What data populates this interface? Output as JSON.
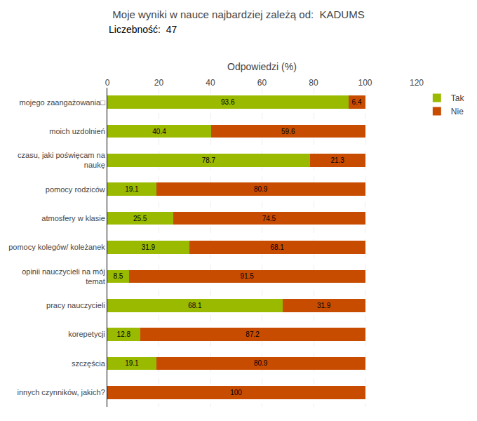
{
  "chart_data": {
    "type": "bar",
    "orientation": "horizontal",
    "stacked": true,
    "title": "Moje wyniki w nauce najbardziej zależą od:  KADUMS",
    "subtitle": "Liczebność:  47",
    "xlabel": "Odpowiedzi (%)",
    "categories": [
      "mojego zaangażowania□",
      "moich uzdolnień",
      "czasu, jaki poświęcam na\nnaukę",
      "pomocy rodziców",
      "atmosfery w klasie",
      "pomocy kolegów/ koleżanek",
      "opinii nauczycieli na mój\ntemat",
      "pracy nauczycieli",
      "korepetycji",
      "szczęścia",
      "innych czynników, jakich?"
    ],
    "series": [
      {
        "name": "Tak",
        "color": "#9aba00",
        "values": [
          93.6,
          40.4,
          78.7,
          19.1,
          25.5,
          31.9,
          8.5,
          68.1,
          12.8,
          19.1,
          0.0
        ]
      },
      {
        "name": "Nie",
        "color": "#c84c00",
        "values": [
          6.4,
          59.6,
          21.3,
          80.9,
          74.5,
          68.1,
          91.5,
          31.9,
          87.2,
          80.9,
          100.0
        ]
      }
    ],
    "xlim": [
      0,
      120
    ],
    "xticks": [
      0,
      20,
      40,
      60,
      80,
      100,
      120
    ],
    "grid": true,
    "legend": "upper right",
    "data_labels": true
  }
}
